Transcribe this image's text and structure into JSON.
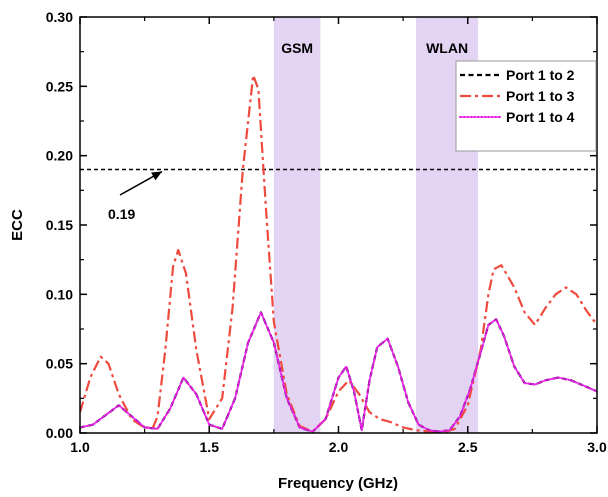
{
  "chart_data": {
    "type": "line",
    "title": "",
    "xlabel": "Frequency (GHz)",
    "ylabel": "ECC",
    "xlim": [
      1.0,
      3.0
    ],
    "ylim": [
      0.0,
      0.3
    ],
    "xticks": [
      1.0,
      1.5,
      2.0,
      2.5,
      3.0
    ],
    "xtick_labels": [
      "1.0",
      "1.5",
      "2.0",
      "2.5",
      "3.0"
    ],
    "yticks": [
      0.0,
      0.05,
      0.1,
      0.15,
      0.2,
      0.25,
      0.3
    ],
    "ytick_labels": [
      "0.00",
      "0.05",
      "0.10",
      "0.15",
      "0.20",
      "0.25",
      "0.30"
    ],
    "grid": false,
    "legend_position": "top-right",
    "bands": [
      {
        "label": "GSM",
        "x_start": 1.75,
        "x_end": 1.93,
        "color": "#e3d2f3"
      },
      {
        "label": "WLAN",
        "x_start": 2.3,
        "x_end": 2.54,
        "color": "#e3d2f3"
      }
    ],
    "reference_line": {
      "y": 0.19,
      "label": "0.19",
      "color": "#000000"
    },
    "series": [
      {
        "name": "Port 1 to 2",
        "color": "#000000",
        "dash": "dash",
        "x": [
          1.0,
          1.05,
          1.1,
          1.15,
          1.2,
          1.25,
          1.3,
          1.35,
          1.4,
          1.45,
          1.5,
          1.55,
          1.6,
          1.65,
          1.7,
          1.75,
          1.8,
          1.85,
          1.9,
          1.95,
          2.0,
          2.03,
          2.06,
          2.09,
          2.12,
          2.15,
          2.19,
          2.23,
          2.27,
          2.31,
          2.35,
          2.39,
          2.43,
          2.47,
          2.51,
          2.55,
          2.58,
          2.61,
          2.64,
          2.68,
          2.72,
          2.76,
          2.8,
          2.85,
          2.9,
          2.95,
          3.0
        ],
        "y": [
          0.004,
          0.006,
          0.013,
          0.02,
          0.012,
          0.004,
          0.003,
          0.018,
          0.04,
          0.028,
          0.006,
          0.003,
          0.025,
          0.065,
          0.087,
          0.065,
          0.025,
          0.004,
          0.001,
          0.01,
          0.04,
          0.048,
          0.03,
          0.002,
          0.038,
          0.062,
          0.068,
          0.048,
          0.022,
          0.006,
          0.002,
          0.001,
          0.002,
          0.012,
          0.032,
          0.058,
          0.078,
          0.082,
          0.07,
          0.048,
          0.036,
          0.035,
          0.038,
          0.04,
          0.038,
          0.034,
          0.03
        ]
      },
      {
        "name": "Port 1 to 3",
        "color": "#ee4b3e",
        "dash": "dashdot",
        "x": [
          1.0,
          1.04,
          1.08,
          1.11,
          1.15,
          1.2,
          1.24,
          1.28,
          1.3,
          1.33,
          1.36,
          1.38,
          1.41,
          1.45,
          1.5,
          1.55,
          1.59,
          1.63,
          1.67,
          1.69,
          1.72,
          1.75,
          1.8,
          1.85,
          1.9,
          1.95,
          2.0,
          2.04,
          2.08,
          2.12,
          2.16,
          2.2,
          2.25,
          2.3,
          2.35,
          2.4,
          2.45,
          2.5,
          2.55,
          2.58,
          2.6,
          2.63,
          2.68,
          2.72,
          2.76,
          2.8,
          2.84,
          2.88,
          2.92,
          2.96,
          3.0
        ],
        "y": [
          0.015,
          0.04,
          0.055,
          0.05,
          0.028,
          0.01,
          0.005,
          0.003,
          0.012,
          0.06,
          0.12,
          0.132,
          0.115,
          0.06,
          0.01,
          0.025,
          0.09,
          0.19,
          0.258,
          0.248,
          0.16,
          0.08,
          0.028,
          0.005,
          0.001,
          0.01,
          0.03,
          0.038,
          0.028,
          0.015,
          0.01,
          0.008,
          0.004,
          0.002,
          0.001,
          0.0,
          0.003,
          0.02,
          0.06,
          0.1,
          0.118,
          0.121,
          0.105,
          0.087,
          0.078,
          0.09,
          0.1,
          0.105,
          0.1,
          0.088,
          0.078
        ]
      },
      {
        "name": "Port 1 to 4",
        "color": "#e81ee8",
        "dash": "dot",
        "x": [
          1.0,
          1.05,
          1.1,
          1.15,
          1.2,
          1.25,
          1.3,
          1.35,
          1.4,
          1.45,
          1.5,
          1.55,
          1.6,
          1.65,
          1.7,
          1.75,
          1.8,
          1.85,
          1.9,
          1.95,
          2.0,
          2.03,
          2.06,
          2.09,
          2.12,
          2.15,
          2.19,
          2.23,
          2.27,
          2.31,
          2.35,
          2.39,
          2.43,
          2.47,
          2.51,
          2.55,
          2.58,
          2.61,
          2.64,
          2.68,
          2.72,
          2.76,
          2.8,
          2.85,
          2.9,
          2.95,
          3.0
        ],
        "y": [
          0.004,
          0.006,
          0.013,
          0.02,
          0.012,
          0.004,
          0.003,
          0.018,
          0.04,
          0.028,
          0.006,
          0.003,
          0.025,
          0.065,
          0.087,
          0.065,
          0.025,
          0.004,
          0.001,
          0.01,
          0.04,
          0.048,
          0.03,
          0.002,
          0.038,
          0.062,
          0.068,
          0.048,
          0.022,
          0.006,
          0.002,
          0.001,
          0.002,
          0.012,
          0.032,
          0.058,
          0.078,
          0.082,
          0.07,
          0.048,
          0.036,
          0.035,
          0.038,
          0.04,
          0.038,
          0.034,
          0.03
        ]
      }
    ]
  }
}
